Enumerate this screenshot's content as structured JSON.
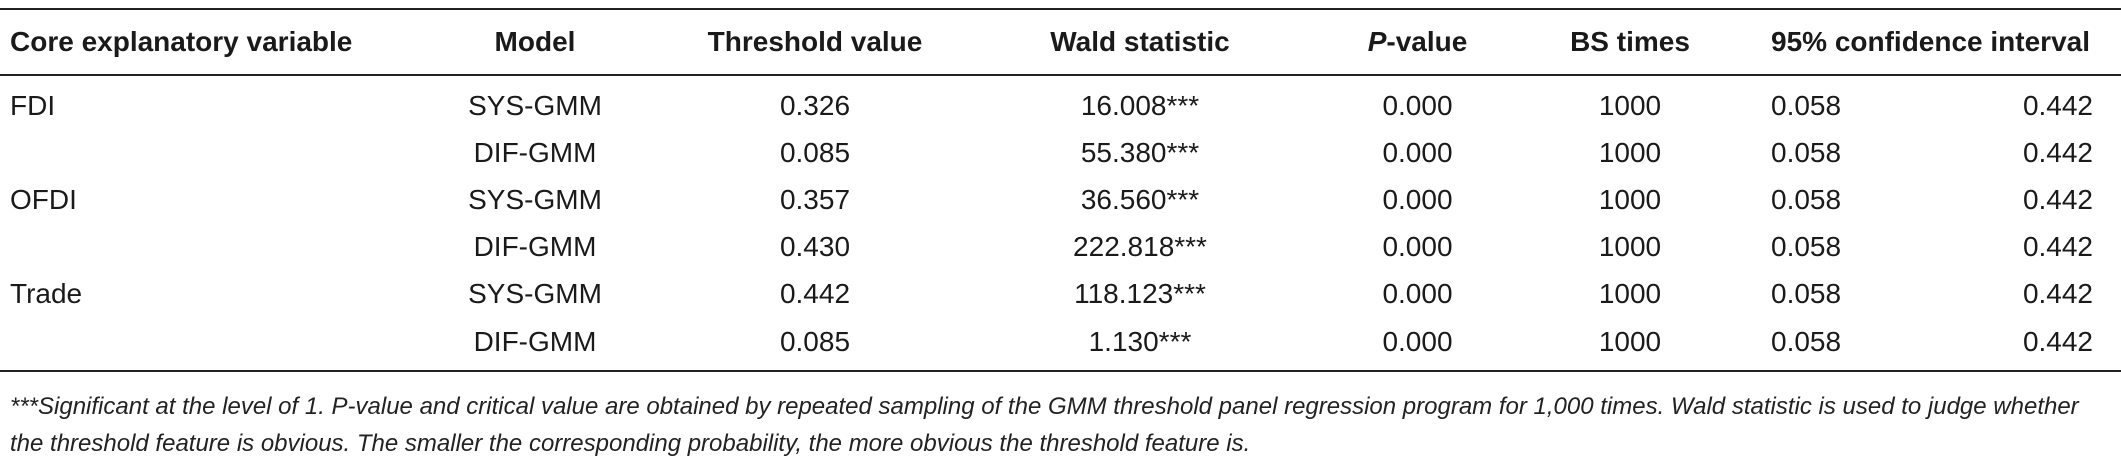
{
  "headers": {
    "core_variable": "Core explanatory variable",
    "model": "Model",
    "threshold": "Threshold value",
    "wald": "Wald statistic",
    "pvalue_letter": "P",
    "pvalue_suffix": "-value",
    "bs_times": "BS times",
    "ci": "95% confidence interval"
  },
  "rows": [
    {
      "variable": "FDI",
      "model": "SYS-GMM",
      "threshold": "0.326",
      "wald": "16.008***",
      "pvalue": "0.000",
      "bs": "1000",
      "ci_low": "0.058",
      "ci_high": "0.442"
    },
    {
      "variable": "",
      "model": "DIF-GMM",
      "threshold": "0.085",
      "wald": "55.380***",
      "pvalue": "0.000",
      "bs": "1000",
      "ci_low": "0.058",
      "ci_high": "0.442"
    },
    {
      "variable": "OFDI",
      "model": "SYS-GMM",
      "threshold": "0.357",
      "wald": "36.560***",
      "pvalue": "0.000",
      "bs": "1000",
      "ci_low": "0.058",
      "ci_high": "0.442"
    },
    {
      "variable": "",
      "model": "DIF-GMM",
      "threshold": "0.430",
      "wald": "222.818***",
      "pvalue": "0.000",
      "bs": "1000",
      "ci_low": "0.058",
      "ci_high": "0.442"
    },
    {
      "variable": "Trade",
      "model": "SYS-GMM",
      "threshold": "0.442",
      "wald": "118.123***",
      "pvalue": "0.000",
      "bs": "1000",
      "ci_low": "0.058",
      "ci_high": "0.442"
    },
    {
      "variable": "",
      "model": "DIF-GMM",
      "threshold": "0.085",
      "wald": "1.130***",
      "pvalue": "0.000",
      "bs": "1000",
      "ci_low": "0.058",
      "ci_high": "0.442"
    }
  ],
  "footnote": "***Significant at the level of 1. P-value and critical value are obtained by repeated sampling of the GMM threshold panel regression program for 1,000 times. Wald statistic is used to judge whether the threshold feature is obvious. The smaller the corresponding probability, the more obvious the threshold feature is."
}
